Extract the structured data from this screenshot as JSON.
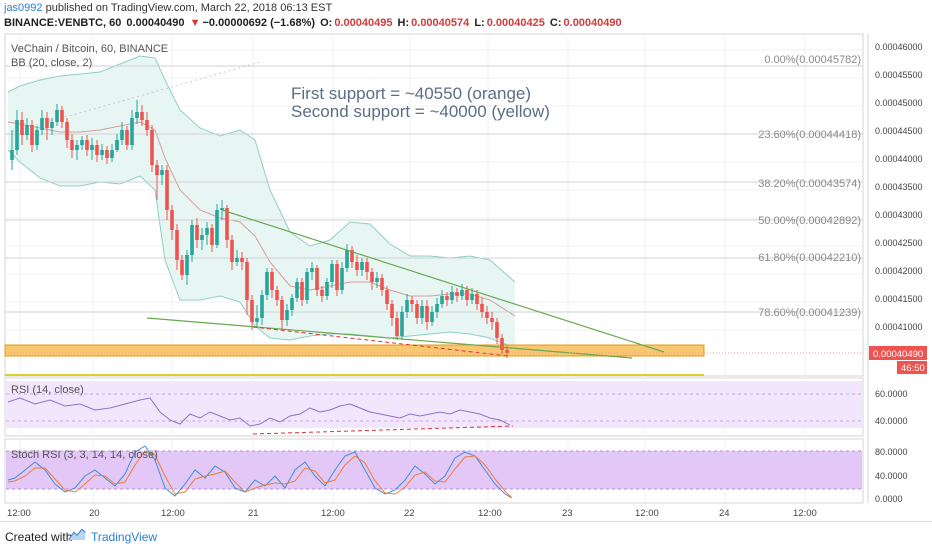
{
  "header": {
    "user": "jas0992",
    "published": " published on TradingView.com, March 22, 2018 06:13 EST",
    "symbol": "BINANCE:VENBTC, 60",
    "last": "0.00040490",
    "change_arrow": "▼",
    "change": "−0.00000692 (−1.68%)",
    "o_label": "O:",
    "o_value": "0.00040495",
    "h_label": "H:",
    "h_value": "0.00040574",
    "l_label": "L:",
    "l_value": "0.00040425",
    "c_label": "C:",
    "c_value": "0.00040490"
  },
  "main_pane": {
    "title": "VeChain / Bitcoin, 60, BINANCE",
    "indicator": "BB (20, close, 2)",
    "note_line1": "First support = ~40550 (orange)",
    "note_line2": "Second support = ~40000 (yellow)",
    "fib_labels": [
      "0.00%(0.00045782)",
      "23.60%(0.00044418)",
      "38.20%(0.00043574)",
      "50.00%(0.00042892)",
      "61.80%(0.00042210)",
      "78.60%(0.00041239)"
    ],
    "price_ticks": [
      "0.00046000",
      "0.00045500",
      "0.00045000",
      "0.00044500",
      "0.00044000",
      "0.00043500",
      "0.00043000",
      "0.00042500",
      "0.00042000",
      "0.00041500",
      "0.00041000"
    ],
    "price_badge": "0.00040490",
    "countdown_badge": "46:50"
  },
  "rsi_pane": {
    "title": "RSI (14, close)",
    "ticks": [
      "60.0000",
      "40.0000"
    ]
  },
  "stoch_pane": {
    "title": "Stoch RSI (3, 3, 14, 14, close)",
    "ticks": [
      "80.0000",
      "40.0000",
      "0.0000"
    ]
  },
  "time_axis": [
    "12:00",
    "20",
    "12:00",
    "21",
    "12:00",
    "22",
    "12:00",
    "23",
    "12:00",
    "24",
    "12:00"
  ],
  "footer": {
    "created": "Created with",
    "brand": "TradingView"
  },
  "colors": {
    "up": "#26a69a",
    "down": "#ef5350",
    "bb_fill": "#e8f6f3",
    "rsi_bg": "#f1e6fc",
    "stoch_bg": "#e2c7f7",
    "orange": "#f5a623",
    "yellow": "#e2d534",
    "trend": "#6aa84f"
  }
}
